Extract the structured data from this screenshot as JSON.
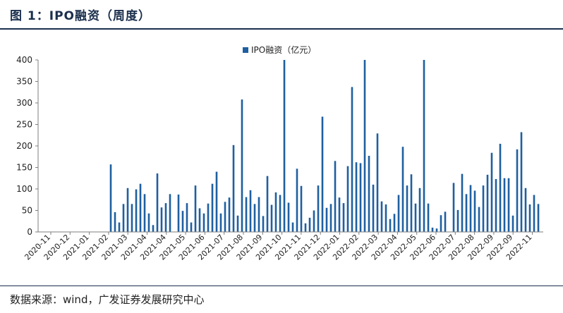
{
  "header": {
    "title": "图 1：IPO融资（周度）"
  },
  "footer": {
    "source": "数据来源：wind，广发证券发展研究中心"
  },
  "colors": {
    "bar": "#1f5fa0",
    "axis": "#7f7f7f",
    "title": "#1b2f4d"
  },
  "chart_data": {
    "type": "bar",
    "title": "",
    "xlabel": "",
    "ylabel": "",
    "ylim": [
      0,
      400
    ],
    "yticks": [
      0,
      50,
      100,
      150,
      200,
      250,
      300,
      350,
      400
    ],
    "legend": "top-center",
    "series": [
      {
        "name": "IPO融资（亿元）",
        "values": [
          157,
          46,
          22,
          65,
          102,
          65,
          99,
          112,
          88,
          43,
          16,
          136,
          57,
          67,
          88,
          0,
          87,
          49,
          67,
          22,
          108,
          55,
          43,
          66,
          112,
          140,
          43,
          70,
          80,
          202,
          38,
          308,
          81,
          97,
          65,
          81,
          37,
          130,
          63,
          92,
          86,
          400,
          68,
          22,
          147,
          107,
          20,
          33,
          50,
          108,
          268,
          56,
          65,
          165,
          80,
          67,
          153,
          337,
          162,
          160,
          400,
          177,
          110,
          229,
          71,
          64,
          30,
          42,
          86,
          198,
          108,
          134,
          66,
          102,
          400,
          66,
          10,
          8,
          39,
          47,
          0,
          114,
          51,
          135,
          88,
          109,
          96,
          58,
          108,
          133,
          184,
          123,
          205,
          125,
          125,
          38,
          192,
          232,
          102,
          64,
          86,
          65
        ]
      }
    ],
    "x_tick_labels": [
      "2020-11",
      "2020-12",
      "2021-01",
      "2021-02",
      "2021-03",
      "2021-04",
      "2021-04",
      "2021-05",
      "2021-06",
      "2021-07",
      "2021-08",
      "2021-09",
      "2021-10",
      "2021-11",
      "2021-12",
      "2022-01",
      "2022-02",
      "2022-03",
      "2022-04",
      "2022-05",
      "2022-06",
      "2022-07",
      "2022-08",
      "2022-09",
      "2022-09",
      "2022-11"
    ]
  }
}
